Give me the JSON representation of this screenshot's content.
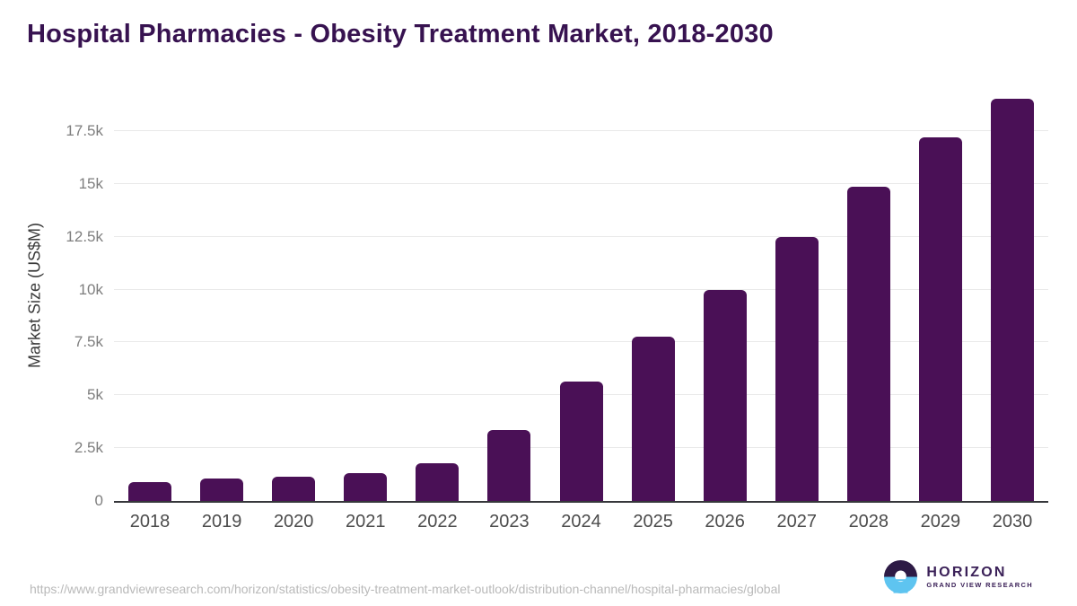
{
  "chart_data": {
    "type": "bar",
    "title": "Hospital Pharmacies - Obesity Treatment Market, 2018-2030",
    "xlabel": "",
    "ylabel": "Market Size (US$M)",
    "categories": [
      "2018",
      "2019",
      "2020",
      "2021",
      "2022",
      "2023",
      "2024",
      "2025",
      "2026",
      "2027",
      "2028",
      "2029",
      "2030"
    ],
    "values": [
      900,
      1050,
      1150,
      1300,
      1800,
      3350,
      5670,
      7790,
      9960,
      12470,
      14850,
      17200,
      19030
    ],
    "unit": "US$M",
    "ylim": [
      0,
      19450
    ],
    "grid": true,
    "legend_position": "none",
    "yticks": [
      {
        "label": "0",
        "value": 0
      },
      {
        "label": "2.5k",
        "value": 2500
      },
      {
        "label": "5k",
        "value": 5000
      },
      {
        "label": "7.5k",
        "value": 7500
      },
      {
        "label": "10k",
        "value": 10000
      },
      {
        "label": "12.5k",
        "value": 12500
      },
      {
        "label": "15k",
        "value": 15000
      },
      {
        "label": "17.5k",
        "value": 17500
      }
    ]
  },
  "colors": {
    "bar": "#4a1056",
    "title": "#371250",
    "gridline": "#e9e9e9",
    "axis": "#36373b",
    "logo_purple": "#2d1a45",
    "logo_blue": "#5ec4f0"
  },
  "footer": {
    "source_url": "https://www.grandviewresearch.com/horizon/statistics/obesity-treatment-market-outlook/distribution-channel/hospital-pharmacies/global",
    "logo": {
      "title": "HORIZON",
      "subtitle": "GRAND VIEW RESEARCH"
    }
  }
}
